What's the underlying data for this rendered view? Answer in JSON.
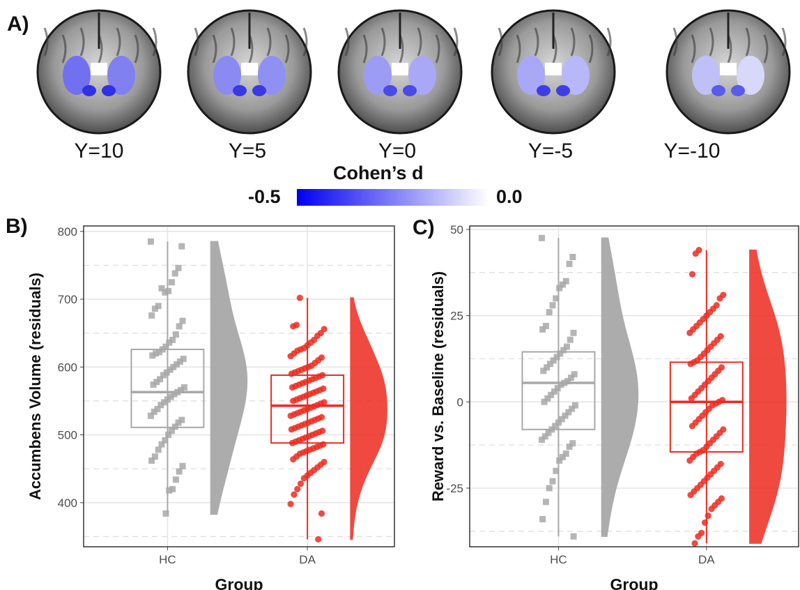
{
  "panel_a": {
    "label": "A)",
    "slices": [
      "Y=10",
      "Y=5",
      "Y=0",
      "Y=-5",
      "Y=-10"
    ],
    "colorbar": {
      "title": "Cohen’s d",
      "min_label": "-0.5",
      "max_label": "0.0",
      "color_min": "#0000ee",
      "color_max": "#ffffff"
    }
  },
  "panel_b_label": "B)",
  "panel_c_label": "C)",
  "colors": {
    "HC": "#a8a8a8",
    "DA": "#ee2a1f"
  },
  "chart_data": [
    {
      "type": "raincloud",
      "title": "",
      "xlabel": "Group",
      "ylabel": "Accumbens Volume (residuals)",
      "categories": [
        "HC",
        "DA"
      ],
      "ylim": [
        335,
        808
      ],
      "yticks": [
        400,
        500,
        600,
        700,
        800
      ],
      "series": [
        {
          "name": "HC",
          "box": {
            "min": 383,
            "q1": 511,
            "median": 563,
            "q3": 626,
            "max": 785
          },
          "points": [
            785,
            778,
            746,
            738,
            725,
            712,
            710,
            716,
            690,
            686,
            676,
            668,
            660,
            648,
            640,
            636,
            630,
            626,
            622,
            620,
            617,
            612,
            608,
            604,
            600,
            596,
            592,
            588,
            582,
            578,
            574,
            570,
            566,
            563,
            560,
            556,
            552,
            548,
            544,
            538,
            534,
            528,
            522,
            518,
            512,
            506,
            500,
            492,
            486,
            478,
            468,
            462,
            454,
            446,
            434,
            420,
            418,
            384
          ]
        },
        {
          "name": "DA",
          "box": {
            "min": 346,
            "q1": 488,
            "median": 543,
            "q3": 588,
            "max": 702
          },
          "points": [
            702,
            662,
            660,
            656,
            650,
            646,
            640,
            636,
            632,
            628,
            626,
            624,
            620,
            616,
            614,
            610,
            606,
            602,
            600,
            598,
            596,
            594,
            592,
            590,
            588,
            586,
            584,
            582,
            580,
            578,
            576,
            574,
            572,
            570,
            568,
            566,
            564,
            562,
            560,
            558,
            556,
            554,
            552,
            550,
            548,
            546,
            544,
            542,
            540,
            538,
            536,
            534,
            532,
            530,
            528,
            526,
            524,
            522,
            520,
            518,
            516,
            514,
            512,
            510,
            508,
            506,
            504,
            502,
            500,
            498,
            496,
            494,
            492,
            490,
            488,
            486,
            484,
            482,
            480,
            478,
            476,
            474,
            472,
            468,
            464,
            460,
            456,
            452,
            448,
            444,
            440,
            436,
            428,
            420,
            412,
            398,
            384,
            346
          ]
        }
      ]
    },
    {
      "type": "raincloud",
      "title": "",
      "xlabel": "Group",
      "ylabel": "Reward vs. Baseline (residuals)",
      "categories": [
        "HC",
        "DA"
      ],
      "ylim": [
        -42,
        51
      ],
      "yticks": [
        -25,
        0,
        25,
        50
      ],
      "series": [
        {
          "name": "HC",
          "box": {
            "min": -39,
            "q1": -8,
            "median": 5.5,
            "q3": 14.5,
            "max": 47.5
          },
          "points": [
            47.5,
            42,
            40,
            35,
            34,
            33,
            30,
            28,
            26,
            22,
            21,
            20,
            18,
            16,
            15,
            14,
            13,
            12,
            11,
            10,
            9,
            8,
            7,
            6,
            5.5,
            5,
            4,
            3,
            2,
            1,
            0,
            -1,
            -2,
            -3,
            -4,
            -5,
            -6,
            -7,
            -8,
            -9,
            -10,
            -11,
            -12,
            -13,
            -15,
            -16,
            -17,
            -20,
            -23,
            -25,
            -29,
            -34,
            -39
          ]
        },
        {
          "name": "DA",
          "box": {
            "min": -41,
            "q1": -14.5,
            "median": 0,
            "q3": 11.5,
            "max": 44
          },
          "points": [
            44,
            43,
            37,
            31,
            30,
            28,
            27,
            26,
            25,
            24,
            23,
            22,
            21,
            20,
            19,
            18,
            17,
            16,
            15,
            14,
            13,
            12,
            11.5,
            11,
            10,
            9,
            8,
            7,
            6,
            5,
            4,
            3,
            2,
            1,
            0.5,
            0,
            -0.5,
            -1,
            -2,
            -3,
            -4,
            -5,
            -6,
            -7,
            -8,
            -9,
            -10,
            -11,
            -12,
            -13,
            -14,
            -14.5,
            -15,
            -16,
            -17,
            -18,
            -19,
            -20,
            -21,
            -22,
            -23,
            -24,
            -25,
            -26,
            -27,
            -28,
            -29,
            -30,
            -31,
            -33,
            -35,
            -38,
            -39,
            -41
          ]
        }
      ]
    }
  ]
}
